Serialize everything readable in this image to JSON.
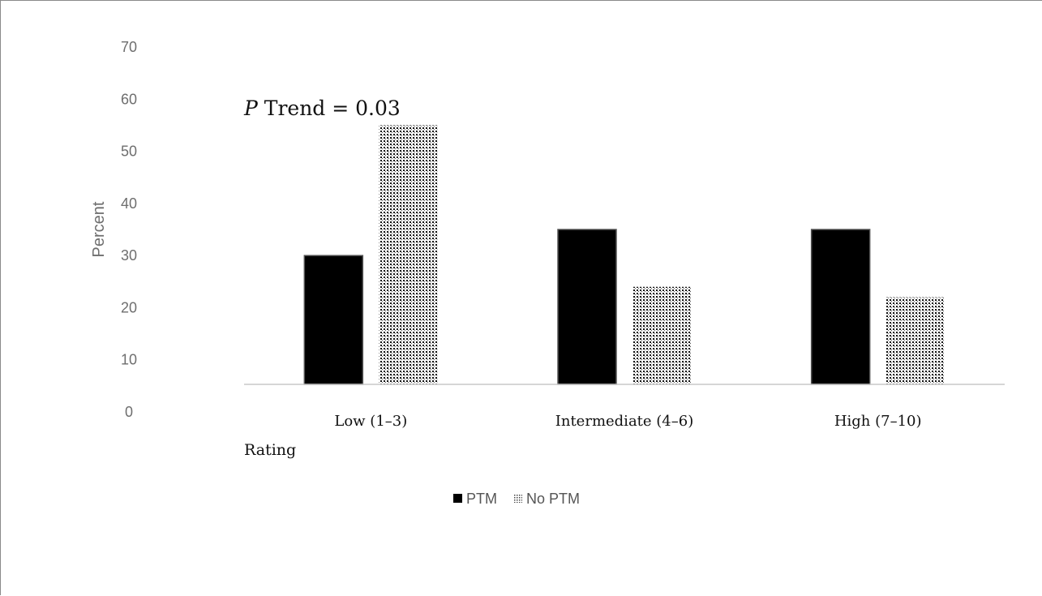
{
  "chart_data": {
    "type": "bar",
    "title": "",
    "annotation": {
      "prefix": "P",
      "text": " Trend = 0.03"
    },
    "xlabel": "Rating",
    "ylabel": "Percent",
    "ylim": [
      0,
      70
    ],
    "yticks": [
      "0",
      "10",
      "20",
      "30",
      "40",
      "50",
      "60",
      "70"
    ],
    "categories": [
      "Low (1–3)",
      "Intermediate (4–6)",
      "High (7–10)"
    ],
    "series": [
      {
        "name": "PTM",
        "values": [
          30,
          35,
          35
        ],
        "color": "#000000",
        "pattern": "solid"
      },
      {
        "name": "No PTM",
        "values": [
          55,
          24,
          22
        ],
        "color": "#000000",
        "pattern": "dotted"
      }
    ],
    "grid": false,
    "legend_position": "bottom"
  }
}
